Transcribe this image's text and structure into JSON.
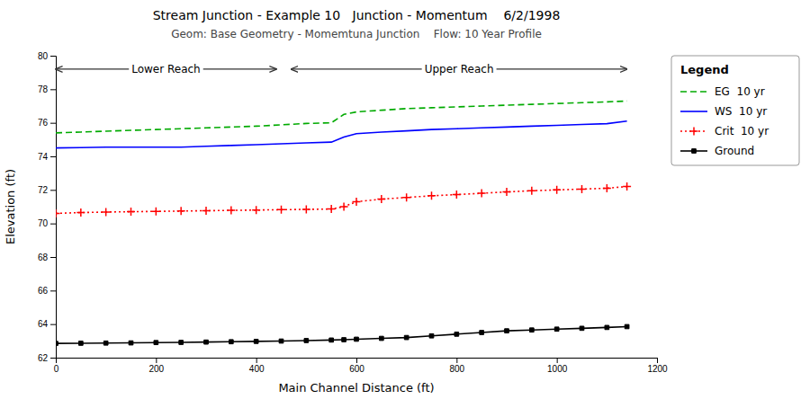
{
  "chart_data": {
    "type": "line",
    "title": "Stream Junction - Example 10   Junction - Momentum    6/2/1998",
    "subtitle": "Geom: Base Geometry - Momemtuna Junction    Flow: 10 Year Profile",
    "xlabel": "Main Channel Distance (ft)",
    "ylabel": "Elevation (ft)",
    "xlim": [
      0,
      1200
    ],
    "ylim": [
      62,
      80
    ],
    "xticks": [
      0,
      200,
      400,
      600,
      800,
      1000,
      1200
    ],
    "yticks": [
      62,
      64,
      66,
      68,
      70,
      72,
      74,
      76,
      78,
      80
    ],
    "grid": false,
    "legend": "right",
    "legend_title": "Legend",
    "x": [
      0,
      50,
      100,
      150,
      200,
      250,
      300,
      350,
      400,
      450,
      500,
      550,
      575,
      600,
      650,
      700,
      750,
      800,
      850,
      900,
      950,
      1000,
      1050,
      1100,
      1140
    ],
    "series": [
      {
        "name": "EG  10 yr",
        "color": "#00aa00",
        "line_style": "dashed",
        "marker": "none",
        "values": [
          75.4,
          75.45,
          75.5,
          75.55,
          75.6,
          75.65,
          75.7,
          75.75,
          75.8,
          75.88,
          75.96,
          76.0,
          76.5,
          76.65,
          76.75,
          76.85,
          76.9,
          76.95,
          77.0,
          77.05,
          77.1,
          77.15,
          77.2,
          77.25,
          77.3
        ]
      },
      {
        "name": "WS  10 yr",
        "color": "#0000ff",
        "line_style": "solid",
        "marker": "none",
        "values": [
          74.5,
          74.52,
          74.55,
          74.55,
          74.55,
          74.55,
          74.6,
          74.65,
          74.7,
          74.75,
          74.8,
          74.85,
          75.15,
          75.35,
          75.45,
          75.52,
          75.6,
          75.65,
          75.7,
          75.75,
          75.8,
          75.85,
          75.9,
          75.95,
          76.1
        ]
      },
      {
        "name": "Crit  10 yr",
        "color": "#ff0000",
        "line_style": "dotted",
        "marker": "plus",
        "values": [
          70.6,
          70.65,
          70.68,
          70.7,
          70.72,
          70.74,
          70.76,
          70.78,
          70.8,
          70.82,
          70.84,
          70.86,
          71.0,
          71.3,
          71.45,
          71.55,
          71.65,
          71.72,
          71.8,
          71.88,
          71.95,
          72.0,
          72.05,
          72.1,
          72.2
        ]
      },
      {
        "name": "Ground",
        "color": "#000000",
        "line_style": "solid",
        "marker": "square",
        "values": [
          62.85,
          62.86,
          62.87,
          62.88,
          62.9,
          62.91,
          62.93,
          62.95,
          62.97,
          62.99,
          63.02,
          63.05,
          63.07,
          63.1,
          63.15,
          63.2,
          63.3,
          63.4,
          63.5,
          63.6,
          63.65,
          63.7,
          63.75,
          63.8,
          63.85
        ]
      }
    ],
    "annotations": [
      {
        "text": "Lower Reach",
        "x": [
          0,
          440
        ],
        "y": 79.2
      },
      {
        "text": "Upper Reach",
        "x": [
          470,
          1140
        ],
        "y": 79.2
      }
    ]
  }
}
